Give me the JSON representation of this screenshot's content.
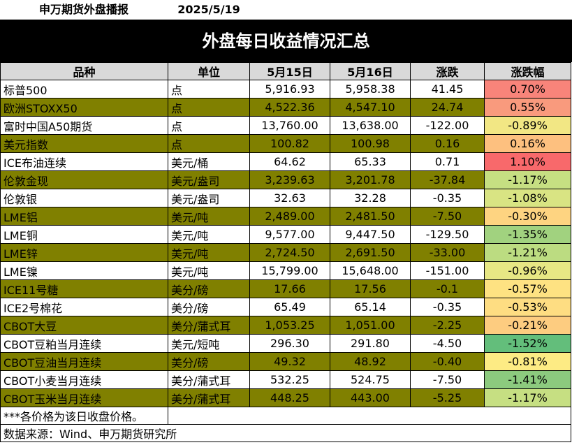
{
  "header": {
    "brand": "申万期货外盘播报",
    "date": "2025/5/19",
    "title": "外盘每日收益情况汇总"
  },
  "table": {
    "columns": [
      "品种",
      "单位",
      "5月15日",
      "5月16日",
      "涨跌",
      "涨跌幅"
    ],
    "rows": [
      {
        "name": "标普500",
        "unit": "点",
        "d1": "5,916.93",
        "d2": "5,958.38",
        "chg": "41.45",
        "pct": "0.70%",
        "pct_color": "#f8847a",
        "band": "white"
      },
      {
        "name": "欧洲STOXX50",
        "unit": "点",
        "d1": "4,522.36",
        "d2": "4,547.10",
        "chg": "24.74",
        "pct": "0.55%",
        "pct_color": "#f99a7d",
        "band": "olive"
      },
      {
        "name": "富时中国A50期货",
        "unit": "点",
        "d1": "13,760.00",
        "d2": "13,638.00",
        "chg": "-122.00",
        "pct": "-0.89%",
        "pct_color": "#f2e784",
        "band": "white"
      },
      {
        "name": "美元指数",
        "unit": "点",
        "d1": "100.82",
        "d2": "100.98",
        "chg": "0.16",
        "pct": "0.16%",
        "pct_color": "#fdc07f",
        "band": "olive"
      },
      {
        "name": "ICE布油连续",
        "unit": "美元/桶",
        "d1": "64.62",
        "d2": "65.33",
        "chg": "0.71",
        "pct": "1.10%",
        "pct_color": "#f8696b",
        "band": "white"
      },
      {
        "name": "伦敦金现",
        "unit": "美元/盎司",
        "d1": "3,239.63",
        "d2": "3,201.78",
        "chg": "-37.84",
        "pct": "-1.17%",
        "pct_color": "#c6df82",
        "band": "olive"
      },
      {
        "name": "伦敦银",
        "unit": "美元/盎司",
        "d1": "32.63",
        "d2": "32.28",
        "chg": "-0.35",
        "pct": "-1.08%",
        "pct_color": "#d9e483",
        "band": "white"
      },
      {
        "name": "LME铝",
        "unit": "美元/吨",
        "d1": "2,489.00",
        "d2": "2,481.50",
        "chg": "-7.50",
        "pct": "-0.30%",
        "pct_color": "#fed481",
        "band": "olive"
      },
      {
        "name": "LME铜",
        "unit": "美元/吨",
        "d1": "9,577.00",
        "d2": "9,447.50",
        "chg": "-129.50",
        "pct": "-1.35%",
        "pct_color": "#a1d27f",
        "band": "white"
      },
      {
        "name": "LME锌",
        "unit": "美元/吨",
        "d1": "2,724.50",
        "d2": "2,691.50",
        "chg": "-33.00",
        "pct": "-1.21%",
        "pct_color": "#bcdc81",
        "band": "olive"
      },
      {
        "name": "LME镍",
        "unit": "美元/吨",
        "d1": "15,799.00",
        "d2": "15,648.00",
        "chg": "-151.00",
        "pct": "-0.96%",
        "pct_color": "#e7e784",
        "band": "white"
      },
      {
        "name": "ICE11号糖",
        "unit": "美分/磅",
        "d1": "17.66",
        "d2": "17.56",
        "chg": "-0.1",
        "pct": "-0.57%",
        "pct_color": "#fee282",
        "band": "olive"
      },
      {
        "name": "ICE2号棉花",
        "unit": "美分/磅",
        "d1": "65.49",
        "d2": "65.14",
        "chg": "-0.35",
        "pct": "-0.53%",
        "pct_color": "#fedd82",
        "band": "white"
      },
      {
        "name": "CBOT大豆",
        "unit": "美分/蒲式耳",
        "d1": "1,053.25",
        "d2": "1,051.00",
        "chg": "-2.25",
        "pct": "-0.21%",
        "pct_color": "#fdcc80",
        "band": "olive"
      },
      {
        "name": "CBOT豆粕当月连续",
        "unit": "美元/短吨",
        "d1": "296.30",
        "d2": "291.80",
        "chg": "-4.50",
        "pct": "-1.52%",
        "pct_color": "#63be7b",
        "band": "white"
      },
      {
        "name": "CBOT豆油当月连续",
        "unit": "美分/磅",
        "d1": "49.32",
        "d2": "48.92",
        "chg": "-0.40",
        "pct": "-0.81%",
        "pct_color": "#fdeb84",
        "band": "olive"
      },
      {
        "name": "CBOT小麦当月连续",
        "unit": "美分/蒲式耳",
        "d1": "532.25",
        "d2": "524.75",
        "chg": "-7.50",
        "pct": "-1.41%",
        "pct_color": "#8cca7e",
        "band": "white"
      },
      {
        "name": "CBOT玉米当月连续",
        "unit": "美分/蒲式耳",
        "d1": "448.25",
        "d2": "443.00",
        "chg": "-5.25",
        "pct": "-1.17%",
        "pct_color": "#c6df82",
        "band": "olive"
      }
    ]
  },
  "footer": {
    "note": "***各价格为该日收盘价格。",
    "source": "数据来源：Wind、申万期货研究所"
  }
}
